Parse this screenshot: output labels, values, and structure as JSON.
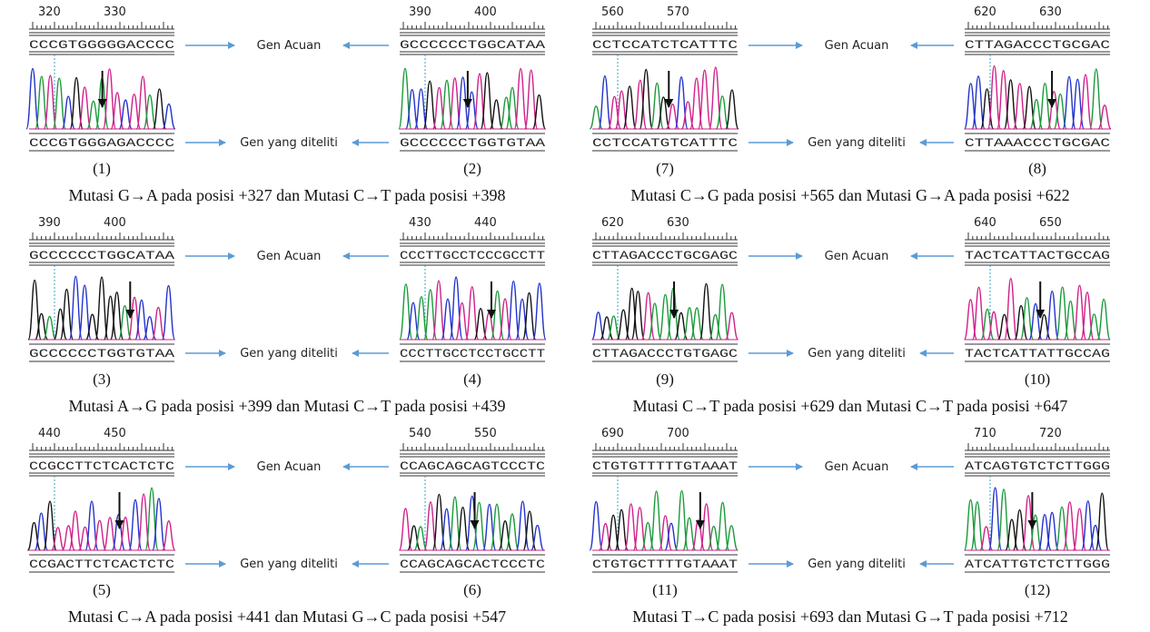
{
  "groups": [
    {
      "panels": [
        {
          "ruler": [
            "320",
            "330"
          ],
          "reference": "CCCGTGGGGGACCCC",
          "sample": "CCCGTGGGAGACCCC",
          "label": "(1)"
        },
        {
          "ruler": [
            "390",
            "400"
          ],
          "reference": "GCCCCCCTGGCATAA",
          "sample": "GCCCCCCTGGTGTAA",
          "label": "(2)"
        }
      ],
      "reference_label": "Gen Acuan",
      "sample_label": "Gen yang diteliti",
      "caption": "Mutasi G→A pada posisi +327 dan Mutasi C→T pada posisi +398"
    },
    {
      "panels": [
        {
          "ruler": [
            "560",
            "570"
          ],
          "reference": "CCTCCATCTCATTTC",
          "sample": "CCTCCATGTCATTTC",
          "label": "(7)"
        },
        {
          "ruler": [
            "620",
            "630"
          ],
          "reference": "CTTAGACCCTGCGAC",
          "sample": "CTTAAACCCTGCGAC",
          "label": "(8)"
        }
      ],
      "reference_label": "Gen Acuan",
      "sample_label": "Gen yang diteliti",
      "caption": "Mutasi C→G pada posisi +565 dan Mutasi G→A pada posisi +622"
    },
    {
      "panels": [
        {
          "ruler": [
            "390",
            "400"
          ],
          "reference": "GCCCCCCTGGCATAA",
          "sample": "GCCCCCCTGGTGTAA",
          "label": "(3)"
        },
        {
          "ruler": [
            "430",
            "440"
          ],
          "reference": "CCCTTGCCTCCCGCCTT",
          "sample": "CCCTTGCCTCCTGCCTT",
          "label": "(4)"
        }
      ],
      "reference_label": "Gen Acuan",
      "sample_label": "Gen yang diteliti",
      "caption": "Mutasi A→G pada posisi +399 dan Mutasi C→T pada posisi +439"
    },
    {
      "panels": [
        {
          "ruler": [
            "620",
            "630"
          ],
          "reference": "CTTAGACCCTGCGAGC",
          "sample": "CTTAGACCCTGTGAGC",
          "label": "(9)"
        },
        {
          "ruler": [
            "640",
            "650"
          ],
          "reference": "TACTCATTACTGCCAG",
          "sample": "TACTCATTATTGCCAG",
          "label": "(10)"
        }
      ],
      "reference_label": "Gen Acuan",
      "sample_label": "Gen yang diteliti",
      "caption": "Mutasi C→T pada posisi +629 dan Mutasi C→T pada posisi +647"
    },
    {
      "panels": [
        {
          "ruler": [
            "440",
            "450"
          ],
          "reference": "CCGCCTTCTCACTCTC",
          "sample": "CCGACTTCTCACTCTC",
          "label": "(5)"
        },
        {
          "ruler": [
            "540",
            "550"
          ],
          "reference": "CCAGCAGCAGTCCCTC",
          "sample": "CCAGCAGCACTCCCTC",
          "label": "(6)"
        }
      ],
      "reference_label": "Gen Acuan",
      "sample_label": "Gen yang diteliti",
      "caption": "Mutasi C→A pada posisi +441 dan Mutasi G→C pada posisi +547"
    },
    {
      "panels": [
        {
          "ruler": [
            "690",
            "700"
          ],
          "reference": "CTGTGTTTTTGTAAAT",
          "sample": "CTGTGCTTTTGTAAAT",
          "label": "(11)"
        },
        {
          "ruler": [
            "710",
            "720"
          ],
          "reference": "ATCAGTGTCTCTTGGG",
          "sample": "ATCATTGTCTCTTGGG",
          "label": "(12)"
        }
      ],
      "reference_label": "Gen Acuan",
      "sample_label": "Gen yang diteliti",
      "caption": "Mutasi T→C pada posisi +693 dan Mutasi G→T pada posisi +712"
    }
  ]
}
